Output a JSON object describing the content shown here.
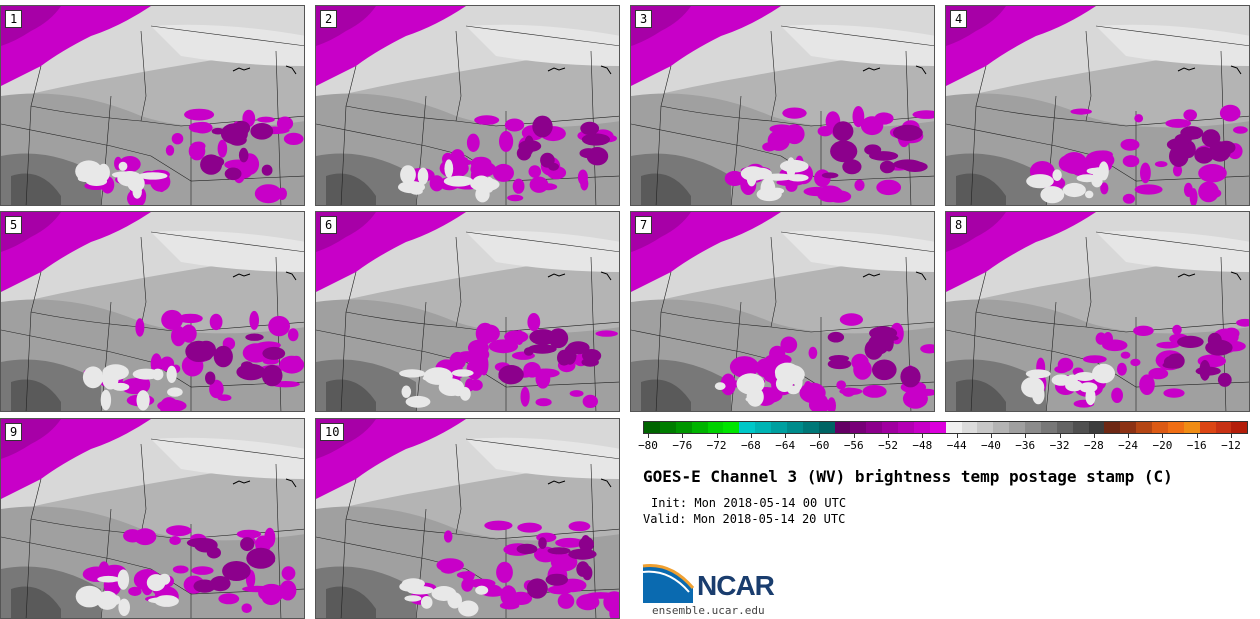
{
  "title": "GOES-E Channel 3 (WV) brightness temp postage stamp (C)",
  "init_text": "Init: Mon 2018-05-14 00 UTC",
  "valid_text": "Valid: Mon 2018-05-14 20 UTC",
  "logo_text": "NCAR",
  "url": "ensemble.ucar.edu",
  "panels": [
    {
      "label": "1"
    },
    {
      "label": "2"
    },
    {
      "label": "3"
    },
    {
      "label": "4"
    },
    {
      "label": "5"
    },
    {
      "label": "6"
    },
    {
      "label": "7"
    },
    {
      "label": "8"
    },
    {
      "label": "9"
    },
    {
      "label": "10"
    }
  ],
  "colorbar": {
    "tick_labels": [
      "-80",
      "-76",
      "-72",
      "-68",
      "-64",
      "-60",
      "-56",
      "-52",
      "-48",
      "-44",
      "-40",
      "-36",
      "-32",
      "-28",
      "-24",
      "-20",
      "-16",
      "-12"
    ],
    "colors": [
      "#006400",
      "#007d00",
      "#009600",
      "#00b400",
      "#00d200",
      "#00e600",
      "#00c8c8",
      "#00b4b4",
      "#00a0a0",
      "#008c8c",
      "#007878",
      "#006464",
      "#640064",
      "#780078",
      "#8c008c",
      "#a000a0",
      "#b400b4",
      "#c800c8",
      "#dc00dc",
      "#f0f0f0",
      "#dcdcdc",
      "#c8c8c8",
      "#b4b4b4",
      "#a0a0a0",
      "#8c8c8c",
      "#787878",
      "#646464",
      "#505050",
      "#3c3c3c",
      "#6e2814",
      "#8c3214",
      "#b44614",
      "#dc5a14",
      "#f06e14",
      "#f08c14",
      "#dc4614",
      "#c83214",
      "#b41e0a"
    ]
  },
  "accent_colors": {
    "cold_cloud": "#c800c8",
    "deep_cloud": "#8c008c",
    "background_gray": "#b0b0b0"
  }
}
